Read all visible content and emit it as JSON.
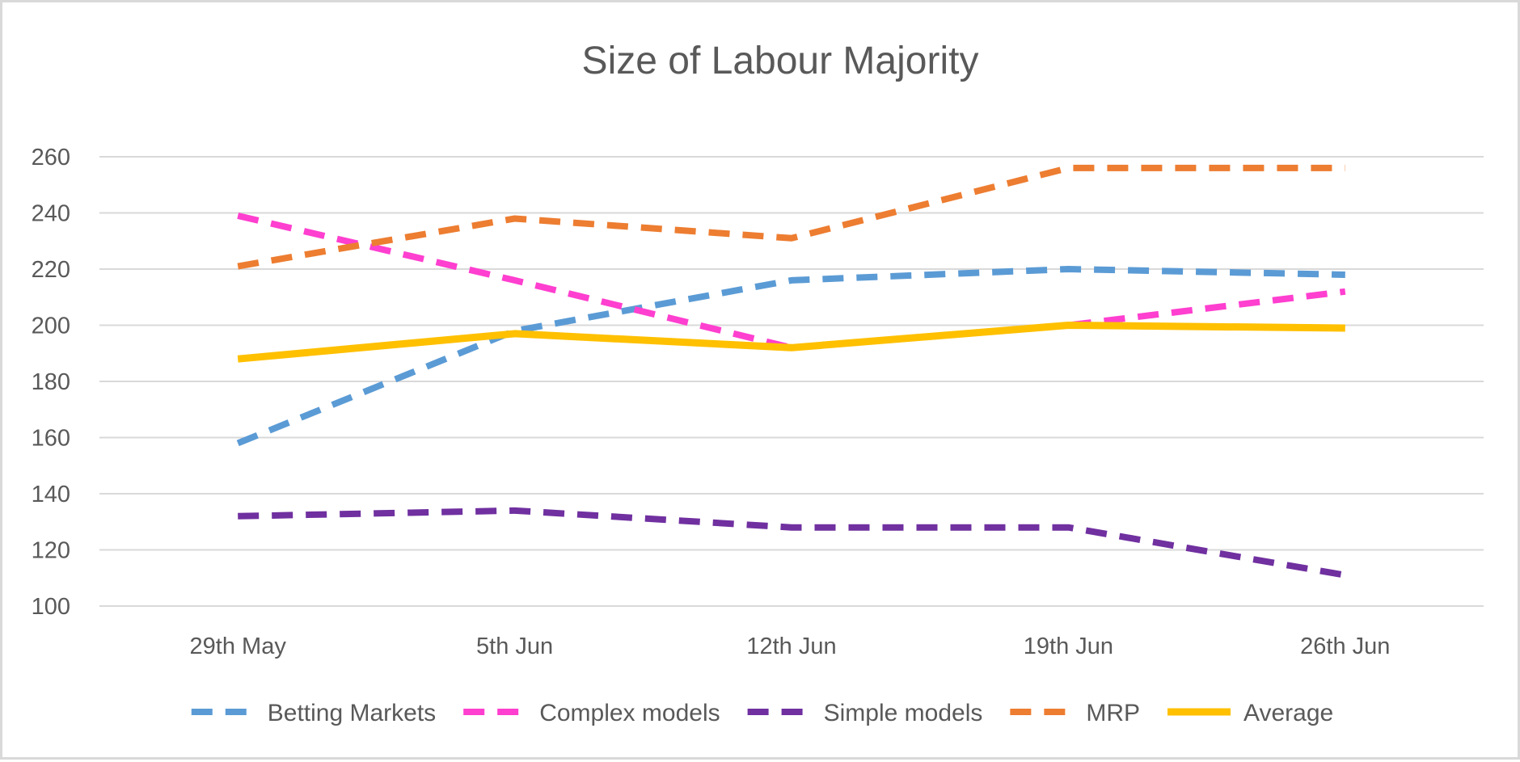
{
  "chart_data": {
    "type": "line",
    "title": "Size of Labour Majority",
    "xlabel": "",
    "ylabel": "",
    "categories": [
      "29th May",
      "5th Jun",
      "12th Jun",
      "19th Jun",
      "26th Jun"
    ],
    "ylim": [
      100,
      260
    ],
    "yticks": [
      100,
      120,
      140,
      160,
      180,
      200,
      220,
      240,
      260
    ],
    "grid": true,
    "legend_position": "bottom",
    "series": [
      {
        "name": "Betting Markets",
        "values": [
          158,
          198,
          216,
          220,
          218
        ],
        "color": "#5B9BD5",
        "style": "dashed"
      },
      {
        "name": "Complex models",
        "values": [
          239,
          216,
          192,
          200,
          212
        ],
        "color": "#FF3FCF",
        "style": "dashed"
      },
      {
        "name": "Simple models",
        "values": [
          132,
          134,
          128,
          128,
          111
        ],
        "color": "#7030A0",
        "style": "dashed"
      },
      {
        "name": "MRP",
        "values": [
          221,
          238,
          231,
          256,
          256
        ],
        "color": "#ED7D31",
        "style": "dashed"
      },
      {
        "name": "Average",
        "values": [
          188,
          197,
          192,
          200,
          199
        ],
        "color": "#FFC000",
        "style": "solid"
      }
    ]
  }
}
